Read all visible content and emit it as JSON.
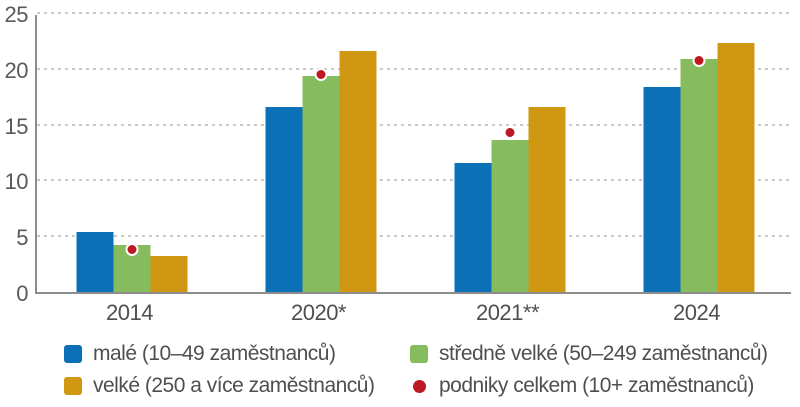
{
  "chart_data": {
    "type": "bar",
    "categories": [
      "2014",
      "2020*",
      "2021**",
      "2024"
    ],
    "series": [
      {
        "name": "malé (10–49 zaměstnanců)",
        "color": "#0b70b5",
        "values": [
          5.4,
          16.6,
          11.6,
          18.4
        ]
      },
      {
        "name": "středně velké (50–249 zaměstnanců)",
        "color": "#86bc5d",
        "values": [
          4.2,
          19.4,
          13.6,
          20.9
        ]
      },
      {
        "name": "velké (250 a více zaměstnanců)",
        "color": "#cf9712",
        "values": [
          3.2,
          21.6,
          16.6,
          22.3
        ]
      }
    ],
    "dot_series": {
      "name": "podniky celkem (10+ zaměstnanců)",
      "color": "#bd1823",
      "values": [
        4.0,
        19.7,
        14.5,
        21.0
      ]
    },
    "y_ticks": [
      0,
      5,
      10,
      15,
      20,
      25
    ],
    "ylim": [
      0,
      25
    ],
    "xlabel": "",
    "ylabel": "",
    "title": "",
    "grid": "horizontal-dashed",
    "legend_position": "bottom",
    "colors": {
      "axis": "#8c8c8c",
      "gridline": "#c9c9c9",
      "tick_text": "#595959",
      "label_text": "#4f4f4f"
    }
  }
}
